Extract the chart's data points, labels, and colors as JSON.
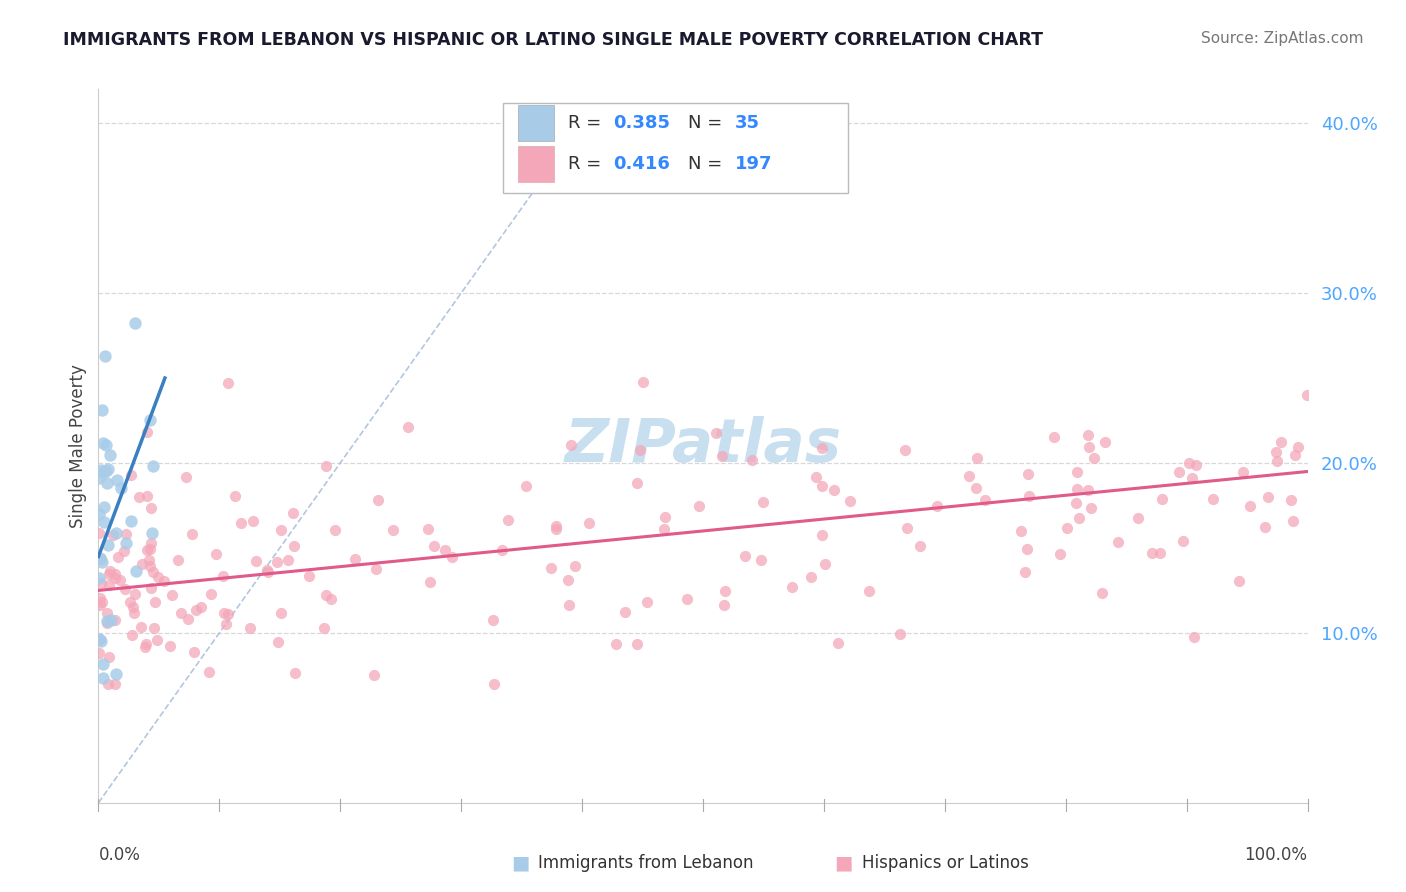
{
  "title": "IMMIGRANTS FROM LEBANON VS HISPANIC OR LATINO SINGLE MALE POVERTY CORRELATION CHART",
  "source": "Source: ZipAtlas.com",
  "ylabel": "Single Male Poverty",
  "legend_blue_R": "0.385",
  "legend_blue_N": "35",
  "legend_pink_R": "0.416",
  "legend_pink_N": "197",
  "blue_color": "#a8cce8",
  "pink_color": "#f4a7b9",
  "blue_trend_color": "#3a7fc1",
  "pink_trend_color": "#e05a8a",
  "diag_color": "#a0b8d8",
  "right_tick_color": "#4da6ff",
  "watermark_color": "#c8dff0",
  "grid_color": "#d8d8d8",
  "spine_color": "#cccccc"
}
